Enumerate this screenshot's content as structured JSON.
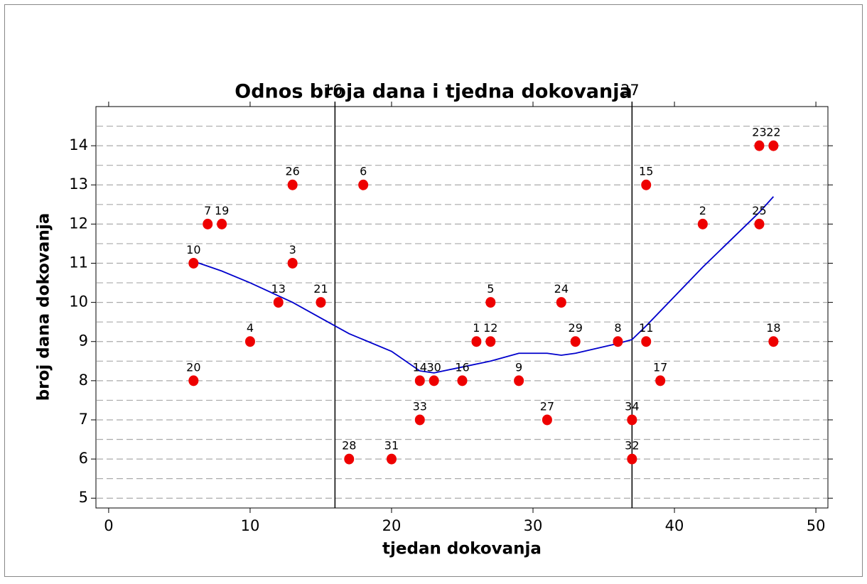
{
  "chart_data": {
    "type": "scatter",
    "title": "Odnos broja dana i tjedna dokovanja",
    "xlabel": "tjedan dokovanja",
    "ylabel": "broj dana dokovanja",
    "x": [
      6,
      6,
      7,
      8,
      10,
      12,
      13,
      13,
      15,
      17,
      18,
      20,
      22,
      22,
      23,
      25,
      26,
      27,
      27,
      29,
      31,
      32,
      33,
      36,
      38,
      37,
      37,
      38,
      39,
      42,
      46,
      46,
      47,
      47
    ],
    "values": [
      11,
      8,
      12,
      12,
      9,
      10,
      13,
      11,
      10,
      6,
      13,
      6,
      8,
      7,
      8,
      8,
      9,
      9,
      10,
      8,
      7,
      10,
      9,
      9,
      9,
      7,
      6,
      13,
      8,
      12,
      12,
      14,
      14,
      9
    ],
    "point_labels": [
      10,
      20,
      7,
      19,
      4,
      13,
      26,
      3,
      21,
      28,
      6,
      31,
      14,
      33,
      30,
      16,
      1,
      12,
      5,
      9,
      27,
      24,
      29,
      8,
      11,
      34,
      32,
      15,
      17,
      2,
      25,
      23,
      22,
      18
    ],
    "color": "#ee0000",
    "fit_line": {
      "color": "#0000cc",
      "x": [
        6,
        8,
        10,
        13,
        15,
        17,
        20,
        22,
        23,
        25,
        27,
        29,
        31,
        32,
        33,
        36,
        37,
        38,
        42,
        46,
        47
      ],
      "values": [
        11.05,
        10.8,
        10.5,
        10.0,
        9.6,
        9.2,
        8.75,
        8.25,
        8.2,
        8.35,
        8.5,
        8.7,
        8.7,
        8.65,
        8.7,
        8.95,
        9.05,
        9.4,
        10.9,
        12.3,
        12.7
      ]
    },
    "reference_lines": [
      16,
      37
    ],
    "xlim": [
      -0.9,
      50.85
    ],
    "ylim": [
      4.75,
      15.0
    ],
    "xticks": [
      0,
      10,
      20,
      30,
      40,
      50
    ],
    "yticks": [
      5,
      6,
      7,
      8,
      9,
      10,
      11,
      12,
      13,
      14
    ],
    "ygrid": [
      5,
      5.5,
      6,
      6.5,
      7,
      7.5,
      8,
      8.5,
      9,
      9.5,
      10,
      10.5,
      11,
      11.5,
      12,
      12.5,
      13,
      13.5,
      14,
      14.5
    ]
  }
}
